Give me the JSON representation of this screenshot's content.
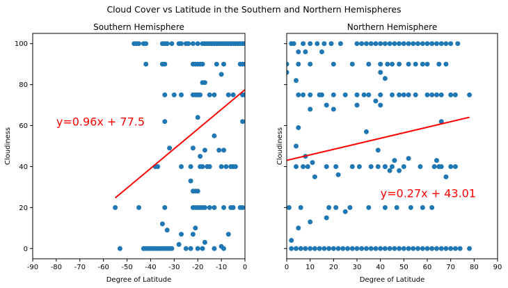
{
  "figure": {
    "title": "Cloud Cover vs Latitude in the Southern and Northern Hemispheres"
  },
  "colors": {
    "point": "#1f77b4",
    "regression": "#ff0000",
    "axis": "#000000"
  },
  "chart_data": [
    {
      "type": "scatter",
      "title": "Southern Hemisphere",
      "xlabel": "Degree of Latitude",
      "ylabel": "Cloudiness",
      "xlim": [
        -90,
        0
      ],
      "ylim": [
        -5,
        105
      ],
      "xticks": [
        -90,
        -80,
        -70,
        -60,
        -50,
        -40,
        -30,
        -20,
        -10,
        0
      ],
      "yticks": [
        0,
        20,
        40,
        60,
        80,
        100
      ],
      "grid": false,
      "annotation": "y=0.96x + 77.5",
      "regression": {
        "slope": 0.96,
        "intercept": 77.5,
        "x_range": [
          -55,
          0
        ]
      },
      "series": [
        {
          "x": [
            -47,
            -46,
            -45,
            -43,
            -42,
            -35,
            -34,
            -33,
            -31,
            -28,
            -27,
            -25,
            -24,
            -22,
            -20,
            -18,
            -17,
            -16,
            -15,
            -14,
            -13,
            -12,
            -11,
            -10,
            -9,
            -8,
            -7,
            -6,
            -5,
            -4,
            -3,
            -2,
            -1,
            0,
            -42,
            -35,
            -34,
            -22,
            -21,
            -20,
            -19,
            -18,
            -12,
            -9,
            -2,
            -1,
            0,
            -18,
            -17,
            -10,
            -34,
            -30,
            -27,
            -22,
            -21,
            -20,
            -19,
            -15,
            -13,
            -7,
            -5,
            -1,
            0,
            -20,
            -34,
            -1,
            -13,
            -32,
            -11,
            -38,
            -37,
            -27,
            -23,
            -19,
            -18,
            -16,
            -15,
            -10,
            -8,
            -6,
            -5,
            -4,
            -22,
            -19,
            -17,
            -9,
            -23,
            -22,
            -21,
            -20,
            -22,
            -21,
            -20,
            -19,
            -18,
            -17,
            -15,
            -13,
            -9,
            -6,
            -5,
            -2,
            -1,
            -55,
            -45,
            -34,
            -35,
            -33,
            -27,
            -22,
            -21,
            -7,
            -28,
            -17,
            -53,
            -43,
            -42,
            -41,
            -40,
            -39,
            -38,
            -37,
            -36,
            -35,
            -34,
            -33,
            -32,
            -31,
            -25,
            -23,
            -20,
            -18,
            -13,
            -10,
            -9
          ],
          "y": [
            100,
            100,
            100,
            100,
            100,
            100,
            100,
            100,
            100,
            100,
            100,
            100,
            100,
            100,
            100,
            100,
            100,
            100,
            100,
            100,
            100,
            100,
            100,
            100,
            100,
            100,
            100,
            100,
            100,
            100,
            100,
            100,
            100,
            100,
            90,
            90,
            90,
            90,
            90,
            90,
            90,
            90,
            90,
            90,
            90,
            90,
            90,
            81,
            81,
            85,
            75,
            75,
            75,
            75,
            75,
            75,
            75,
            75,
            75,
            75,
            75,
            75,
            75,
            64,
            62,
            62,
            55,
            49,
            48,
            40,
            40,
            40,
            40,
            40,
            40,
            40,
            40,
            40,
            40,
            40,
            40,
            40,
            49,
            45,
            48,
            48,
            33,
            28,
            28,
            28,
            20,
            20,
            20,
            20,
            20,
            20,
            20,
            20,
            20,
            20,
            20,
            20,
            20,
            20,
            20,
            20,
            12,
            9,
            7,
            7,
            10,
            7,
            2,
            3,
            0,
            0,
            0,
            0,
            0,
            0,
            0,
            0,
            0,
            0,
            0,
            0,
            0,
            0,
            0,
            0,
            0,
            0,
            0,
            1,
            0
          ]
        }
      ]
    },
    {
      "type": "scatter",
      "title": "Northern Hemisphere",
      "xlabel": "Degree of Latitude",
      "ylabel": "Cloudiness",
      "xlim": [
        0,
        90
      ],
      "ylim": [
        -5,
        105
      ],
      "xticks": [
        0,
        10,
        20,
        30,
        40,
        50,
        60,
        70,
        80,
        90
      ],
      "yticks": [
        0,
        20,
        40,
        60,
        80,
        100
      ],
      "grid": false,
      "annotation": "y=0.27x + 43.01",
      "regression": {
        "slope": 0.27,
        "intercept": 43.01,
        "x_range": [
          0,
          78
        ]
      },
      "series": [
        {
          "x": [
            2,
            3,
            7,
            10,
            13,
            16,
            19,
            23,
            30,
            32,
            34,
            36,
            38,
            40,
            42,
            44,
            46,
            48,
            50,
            52,
            54,
            56,
            58,
            60,
            62,
            64,
            66,
            68,
            70,
            73,
            5,
            8,
            15,
            0,
            5,
            10,
            20,
            28,
            35,
            40,
            43,
            45,
            48,
            52,
            55,
            58,
            60,
            65,
            68,
            0,
            40,
            42,
            38,
            40,
            5,
            7,
            10,
            15,
            20,
            25,
            30,
            33,
            35,
            40,
            45,
            48,
            50,
            52,
            55,
            60,
            62,
            64,
            66,
            70,
            72,
            78,
            4,
            14,
            66,
            5,
            10,
            8,
            46,
            52,
            42,
            44,
            4,
            9,
            17,
            21,
            28,
            31,
            36,
            39,
            42,
            45,
            50,
            57,
            63,
            65,
            70,
            7,
            12,
            4,
            11,
            22,
            39,
            48,
            64,
            66,
            68,
            72,
            17,
            20,
            30,
            34,
            1,
            6,
            18,
            21,
            27,
            35,
            42,
            47,
            53,
            58,
            62,
            5,
            10,
            17,
            25,
            2,
            2,
            4,
            6,
            8,
            10,
            12,
            14,
            16,
            18,
            20,
            22,
            24,
            26,
            28,
            30,
            32,
            34,
            36,
            38,
            40,
            42,
            44,
            46,
            48,
            50,
            52,
            54,
            56,
            58,
            60,
            62,
            64,
            66,
            68,
            70,
            72,
            74,
            78
          ],
          "y": [
            100,
            100,
            100,
            100,
            100,
            100,
            100,
            100,
            100,
            100,
            100,
            100,
            100,
            100,
            100,
            100,
            100,
            100,
            100,
            100,
            100,
            100,
            100,
            100,
            100,
            100,
            100,
            100,
            100,
            100,
            96,
            96,
            96,
            90,
            90,
            90,
            90,
            90,
            90,
            90,
            90,
            90,
            90,
            90,
            90,
            90,
            90,
            90,
            90,
            86,
            86,
            83,
            72,
            70,
            75,
            75,
            75,
            75,
            75,
            75,
            75,
            75,
            75,
            75,
            75,
            75,
            75,
            75,
            75,
            75,
            75,
            75,
            75,
            75,
            75,
            75,
            82,
            75,
            62,
            59,
            68,
            45,
            43,
            44,
            40,
            38,
            40,
            40,
            40,
            40,
            40,
            40,
            40,
            40,
            40,
            40,
            40,
            40,
            40,
            40,
            40,
            40,
            35,
            50,
            42,
            36,
            48,
            38,
            43,
            40,
            35,
            40,
            70,
            68,
            70,
            57,
            20,
            20,
            20,
            20,
            20,
            20,
            20,
            20,
            20,
            20,
            20,
            10,
            13,
            15,
            18,
            4,
            0,
            0,
            0,
            0,
            0,
            0,
            0,
            0,
            0,
            0,
            0,
            0,
            0,
            0,
            0,
            0,
            0,
            0,
            0,
            0,
            0,
            0,
            0,
            0,
            0,
            0,
            0,
            0,
            0,
            0,
            0,
            0,
            0,
            0,
            0,
            0,
            0,
            0
          ]
        }
      ]
    }
  ]
}
